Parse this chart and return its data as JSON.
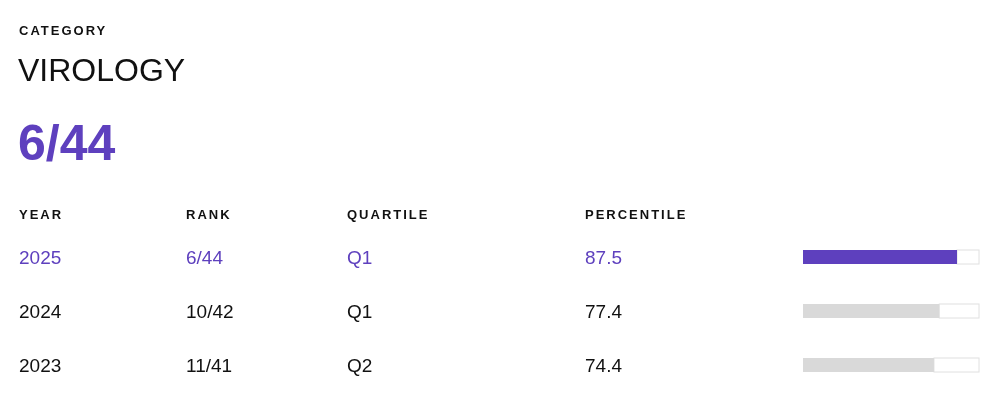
{
  "chart_data": {
    "type": "bar",
    "orientation": "horizontal",
    "title": "VIROLOGY",
    "ylabel": "YEAR",
    "xlabel": "PERCENTILE",
    "categories": [
      "2025",
      "2024",
      "2023"
    ],
    "values": [
      87.5,
      77.4,
      74.4
    ],
    "colors": [
      "#5e40be",
      "#d9d9d9",
      "#d9d9d9"
    ],
    "xlim": [
      0,
      100
    ],
    "tick_labels": "y",
    "data_labels": true,
    "annotations": [
      "CATEGORY",
      "6/44",
      "RANK",
      "6/44",
      "10/42",
      "11/41",
      "QUARTILE",
      "Q1",
      "Q1",
      "Q2"
    ]
  }
}
